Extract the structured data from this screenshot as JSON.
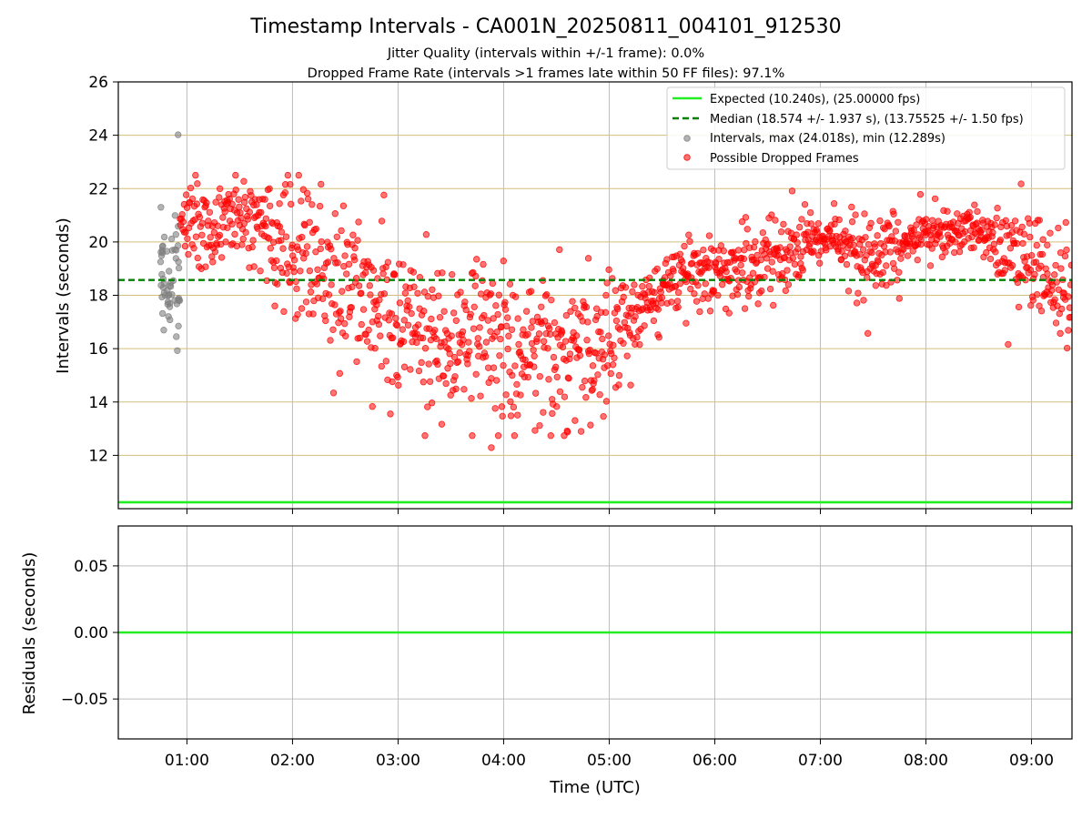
{
  "chart_data": [
    {
      "type": "scatter",
      "title": "Timestamp Intervals - CA001N_20250811_004101_912530",
      "subtitle_lines": [
        "Jitter Quality (intervals within +/-1 frame): 0.0%",
        "Dropped Frame Rate (intervals >1 frames late within 50 FF files): 97.1%"
      ],
      "xlabel": "",
      "ylabel": "Intervals (seconds)",
      "xlim": [
        "00:21",
        "09:23"
      ],
      "ylim": [
        10.0,
        26.0
      ],
      "yticks": [
        12,
        14,
        16,
        18,
        20,
        22,
        24,
        26
      ],
      "xticks": [
        "01:00",
        "02:00",
        "03:00",
        "04:00",
        "05:00",
        "06:00",
        "07:00",
        "08:00",
        "09:00"
      ],
      "grid": true,
      "legend_position": "top-right",
      "reference_lines": [
        {
          "name": "Expected (10.240s), (25.00000 fps)",
          "y": 10.24,
          "style": "solid",
          "color": "#22ee22"
        },
        {
          "name": "Median (18.574 +/- 1.937 s), (13.75525 +/- 1.50 fps)",
          "y": 18.574,
          "style": "dashed",
          "color": "#008000"
        }
      ],
      "series": [
        {
          "name": "Intervals, max (24.018s), min (12.289s)",
          "color": "#808080",
          "x_start": "00:45",
          "x_end": "00:56",
          "max": 24.018,
          "min": 15.65,
          "median": 18.8
        },
        {
          "name": "Possible Dropped Frames",
          "color": "#ff0000",
          "x_start": "00:56",
          "x_end": "09:23",
          "max": 22.5,
          "min": 12.289,
          "trend_hourly": [
            {
              "x": "01:00",
              "y": 20.5
            },
            {
              "x": "01:30",
              "y": 21.1
            },
            {
              "x": "02:00",
              "y": 19.6
            },
            {
              "x": "02:30",
              "y": 18.2
            },
            {
              "x": "03:00",
              "y": 17.3
            },
            {
              "x": "03:30",
              "y": 16.4
            },
            {
              "x": "04:00",
              "y": 16.0
            },
            {
              "x": "04:30",
              "y": 16.1
            },
            {
              "x": "05:00",
              "y": 16.3
            },
            {
              "x": "05:30",
              "y": 18.3
            },
            {
              "x": "06:00",
              "y": 18.9
            },
            {
              "x": "06:30",
              "y": 19.3
            },
            {
              "x": "07:00",
              "y": 20.3
            },
            {
              "x": "07:30",
              "y": 19.3
            },
            {
              "x": "08:00",
              "y": 20.3
            },
            {
              "x": "08:30",
              "y": 20.5
            },
            {
              "x": "09:00",
              "y": 19.0
            },
            {
              "x": "09:23",
              "y": 18.0
            }
          ]
        }
      ]
    },
    {
      "type": "line",
      "xlabel": "Time (UTC)",
      "ylabel": "Residuals (seconds)",
      "xlim": [
        "00:21",
        "09:23"
      ],
      "ylim": [
        -0.08,
        0.08
      ],
      "yticks": [
        -0.05,
        0.0,
        0.05
      ],
      "ytick_labels": [
        "−0.05",
        "0.00",
        "0.05"
      ],
      "xticks": [
        "01:00",
        "02:00",
        "03:00",
        "04:00",
        "05:00",
        "06:00",
        "07:00",
        "08:00",
        "09:00"
      ],
      "grid": true,
      "series": [
        {
          "color": "#22ee22",
          "y": 0.0
        }
      ]
    }
  ]
}
